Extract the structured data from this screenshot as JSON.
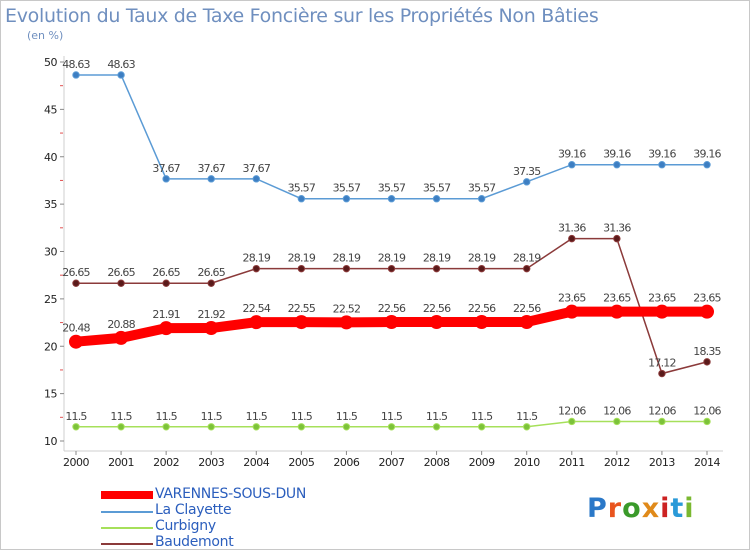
{
  "title": "Evolution du Taux de Taxe Foncière sur les Propriétés Non Bâties",
  "unit_label": "(en %)",
  "logo": {
    "letters": [
      "P",
      "r",
      "o",
      "x",
      "i",
      "t",
      "i"
    ],
    "colors": [
      "#2a78c8",
      "#e9541e",
      "#3a9a2a",
      "#e08a1a",
      "#cc2222",
      "#2a9ad8",
      "#7ab830"
    ]
  },
  "chart_data": {
    "type": "line",
    "title": "Evolution du Taux de Taxe Foncière sur les Propriétés Non Bâties",
    "ylabel": "(en %)",
    "xlabel": "",
    "x": [
      "2000",
      "2001",
      "2002",
      "2003",
      "2004",
      "2005",
      "2006",
      "2007",
      "2008",
      "2009",
      "2010",
      "2011",
      "2012",
      "2013",
      "2014"
    ],
    "ylim": [
      10,
      50
    ],
    "yticks": [
      "10",
      "15",
      "20",
      "25",
      "30",
      "35",
      "40",
      "45",
      "50"
    ],
    "grid": false,
    "legend_position": "bottom-left",
    "series": [
      {
        "name": "VARENNES-SOUS-DUN",
        "color": "#ff0000",
        "values": [
          20.48,
          20.88,
          21.91,
          21.92,
          22.54,
          22.55,
          22.52,
          22.56,
          22.56,
          22.56,
          22.56,
          23.65,
          23.65,
          23.65,
          23.65
        ],
        "labels": [
          "20.48",
          "20.88",
          "21.91",
          "21.92",
          "22.54",
          "22.55",
          "22.52",
          "22.56",
          "22.56",
          "22.56",
          "22.56",
          "23.65",
          "23.65",
          "23.65",
          "23.65"
        ],
        "marker": "#ff0000"
      },
      {
        "name": "La Clayette",
        "color": "#5b9bd5",
        "values": [
          48.63,
          48.63,
          37.67,
          37.67,
          37.67,
          35.57,
          35.57,
          35.57,
          35.57,
          35.57,
          37.35,
          39.16,
          39.16,
          39.16,
          39.16
        ],
        "labels": [
          "48.63",
          "48.63",
          "37.67",
          "37.67",
          "37.67",
          "35.57",
          "35.57",
          "35.57",
          "35.57",
          "35.57",
          "37.35",
          "39.16",
          "39.16",
          "39.16",
          "39.16"
        ],
        "marker": "#3d7ec2"
      },
      {
        "name": "Curbigny",
        "color": "#a6e05a",
        "values": [
          11.5,
          11.5,
          11.5,
          11.5,
          11.5,
          11.5,
          11.5,
          11.5,
          11.5,
          11.5,
          11.5,
          12.06,
          12.06,
          12.06,
          12.06
        ],
        "labels": [
          "11.5",
          "11.5",
          "11.5",
          "11.5",
          "11.5",
          "11.5",
          "11.5",
          "11.5",
          "11.5",
          "11.5",
          "11.5",
          "12.06",
          "12.06",
          "12.06",
          "12.06"
        ],
        "marker": "#7cc23a"
      },
      {
        "name": "Baudemont",
        "color": "#8b3a3a",
        "values": [
          26.65,
          26.65,
          26.65,
          26.65,
          28.19,
          28.19,
          28.19,
          28.19,
          28.19,
          28.19,
          28.19,
          31.36,
          31.36,
          17.12,
          18.35
        ],
        "labels": [
          "26.65",
          "26.65",
          "26.65",
          "26.65",
          "28.19",
          "28.19",
          "28.19",
          "28.19",
          "28.19",
          "28.19",
          "28.19",
          "31.36",
          "31.36",
          "17.12",
          "18.35"
        ],
        "marker": "#5a1a1a"
      }
    ]
  }
}
